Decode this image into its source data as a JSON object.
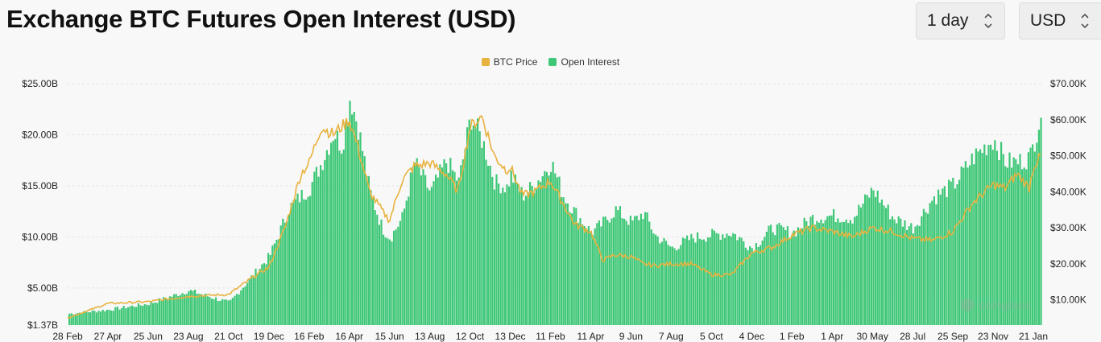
{
  "header": {
    "title": "Exchange BTC Futures Open Interest (USD)",
    "interval_select": "1 day",
    "currency_select": "USD"
  },
  "colors": {
    "btc_price": "#e8b23e",
    "open_interest": "#3ec777",
    "grid": "#e3e3e3"
  },
  "watermark": "coinglass",
  "chart_data": {
    "type": "area",
    "title": "Exchange BTC Futures Open Interest (USD)",
    "legend": {
      "position": "top-center",
      "entries": [
        "BTC Price",
        "Open Interest"
      ]
    },
    "x_tick_labels": [
      "28 Feb",
      "27 Apr",
      "25 Jun",
      "23 Aug",
      "21 Oct",
      "19 Dec",
      "16 Feb",
      "16 Apr",
      "15 Jun",
      "13 Aug",
      "12 Oct",
      "13 Dec",
      "11 Feb",
      "11 Apr",
      "9 Jun",
      "7 Aug",
      "5 Oct",
      "4 Dec",
      "1 Feb",
      "1 Apr",
      "30 May",
      "28 Jul",
      "25 Sep",
      "23 Nov",
      "21 Jan"
    ],
    "y_left": {
      "ticks": [
        "$1.37B",
        "$5.00B",
        "$10.00B",
        "$15.00B",
        "$20.00B",
        "$25.00B"
      ],
      "values": [
        1.37,
        5,
        10,
        15,
        20,
        25
      ],
      "unit": "B USD",
      "range": [
        1.37,
        25
      ]
    },
    "y_right": {
      "ticks": [
        "$10.00K",
        "$20.00K",
        "$30.00K",
        "$40.00K",
        "$50.00K",
        "$60.00K",
        "$70.00K"
      ],
      "values": [
        10,
        20,
        30,
        40,
        50,
        60,
        70
      ],
      "unit": "K USD",
      "range": [
        3,
        70
      ]
    },
    "grid": true,
    "series": [
      {
        "name": "Open Interest",
        "axis": "left",
        "kind": "bar",
        "x_index": [
          0,
          1,
          2,
          3,
          4,
          5,
          5.5,
          6,
          6.3,
          6.6,
          6.8,
          7,
          7.2,
          7.5,
          7.8,
          8,
          8.3,
          8.6,
          9,
          9.4,
          9.7,
          10,
          10.3,
          10.6,
          10.9,
          11,
          11.3,
          11.6,
          12,
          12.3,
          12.6,
          13,
          13.3,
          13.6,
          14,
          14.3,
          14.6,
          15,
          15.5,
          16,
          16.5,
          17,
          17.5,
          18,
          18.5,
          19,
          19.5,
          20,
          20.5,
          21,
          21.5,
          22,
          22.5,
          23,
          23.3,
          23.6,
          23.9,
          24,
          24.2
        ],
        "values": [
          2.5,
          2.9,
          3.5,
          4.8,
          3.6,
          8.2,
          13,
          15,
          17.5,
          20.5,
          19,
          24,
          21,
          14.5,
          11,
          10,
          12,
          17.5,
          14.5,
          17.6,
          15.5,
          22,
          19.5,
          15.5,
          15,
          16.2,
          14.2,
          15.3,
          17.5,
          14.2,
          12.5,
          10.5,
          11.5,
          12.8,
          11.5,
          12.5,
          10.2,
          9,
          10,
          10.3,
          10.5,
          9,
          11,
          10.5,
          12,
          12.2,
          12,
          14.8,
          12,
          11,
          14,
          15.2,
          18,
          19.8,
          17.5,
          17.5,
          18,
          19.5,
          23
        ]
      },
      {
        "name": "BTC Price",
        "axis": "right",
        "kind": "line",
        "x_index": [
          0,
          1,
          2,
          3,
          4,
          4.7,
          5,
          5.4,
          5.8,
          6,
          6.3,
          6.6,
          6.8,
          7,
          7.2,
          7.5,
          7.8,
          8,
          8.3,
          8.6,
          9,
          9.4,
          9.7,
          10,
          10.3,
          10.6,
          10.9,
          11,
          11.3,
          11.6,
          12,
          12.3,
          12.6,
          13,
          13.3,
          13.6,
          14,
          14.3,
          14.6,
          15,
          15.5,
          16,
          16.5,
          17,
          17.5,
          18,
          18.5,
          19,
          19.5,
          20,
          20.5,
          21,
          21.5,
          22,
          22.5,
          23,
          23.3,
          23.6,
          23.9,
          24,
          24.2
        ],
        "values": [
          5,
          9,
          9.5,
          11,
          11.5,
          17,
          19,
          30,
          45,
          48,
          58,
          56,
          58,
          60,
          53,
          40,
          35,
          32,
          43,
          47,
          48,
          45,
          40,
          58,
          61,
          50,
          46,
          47,
          39,
          40,
          43,
          37,
          31,
          29,
          21,
          22.5,
          22,
          20,
          19.5,
          20,
          20,
          17,
          17,
          23,
          24.5,
          28,
          30,
          29,
          27.5,
          30,
          29,
          27,
          26.5,
          29,
          37,
          42,
          41,
          45,
          41,
          47,
          50
        ]
      }
    ]
  }
}
